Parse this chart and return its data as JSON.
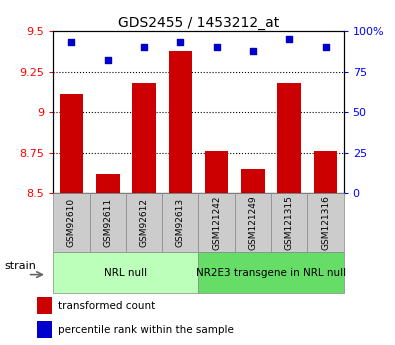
{
  "title": "GDS2455 / 1453212_at",
  "samples": [
    "GSM92610",
    "GSM92611",
    "GSM92612",
    "GSM92613",
    "GSM121242",
    "GSM121249",
    "GSM121315",
    "GSM121316"
  ],
  "transformed_counts": [
    9.11,
    8.62,
    9.18,
    9.38,
    8.76,
    8.65,
    9.18,
    8.76
  ],
  "percentile_ranks": [
    93,
    82,
    90,
    93,
    90,
    88,
    95,
    90
  ],
  "groups": [
    {
      "label": "NRL null",
      "start": 0,
      "end": 4,
      "color": "#bbffbb"
    },
    {
      "label": "NR2E3 transgene in NRL null",
      "start": 4,
      "end": 8,
      "color": "#66dd66"
    }
  ],
  "ylim_left": [
    8.5,
    9.5
  ],
  "ylim_right": [
    0,
    100
  ],
  "yticks_left": [
    8.5,
    8.75,
    9.0,
    9.25,
    9.5
  ],
  "ytick_labels_left": [
    "8.5",
    "8.75",
    "9",
    "9.25",
    "9.5"
  ],
  "yticks_right": [
    0,
    25,
    50,
    75,
    100
  ],
  "ytick_labels_right": [
    "0",
    "25",
    "50",
    "75",
    "100%"
  ],
  "bar_color": "#cc0000",
  "dot_color": "#0000cc",
  "bar_bottom": 8.5,
  "bar_width": 0.65,
  "legend_items": [
    {
      "label": "transformed count",
      "color": "#cc0000"
    },
    {
      "label": "percentile rank within the sample",
      "color": "#0000cc"
    }
  ],
  "strain_label": "strain",
  "grid_yticks": [
    8.75,
    9.0,
    9.25
  ],
  "sample_box_color": "#cccccc",
  "sample_box_edge": "#888888"
}
